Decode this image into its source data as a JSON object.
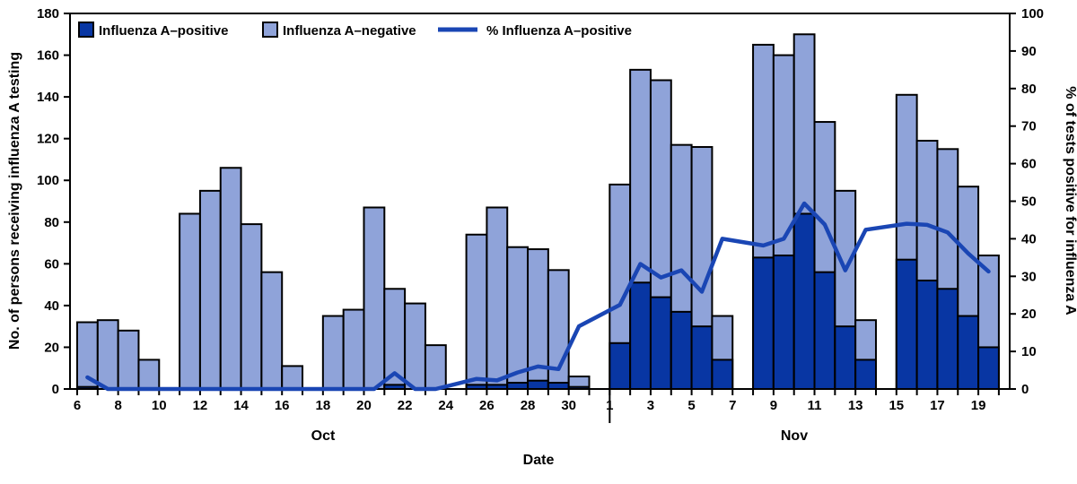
{
  "chart_data": {
    "type": "combo: stacked-bar + line (epidemic curve)",
    "title": "",
    "legend_position": "top-left inside plot",
    "grid": false,
    "colors": {
      "positive": "#0836a3",
      "negative": "#8fa3d9",
      "line": "#1a46b4",
      "axis": "#000000"
    },
    "legend": [
      "Influenza A–positive",
      "Influenza A–negative",
      "% Influenza A–positive"
    ],
    "left_axis": {
      "label": "No. of persons receiving influenza A testing",
      "min": 0,
      "max": 180,
      "step": 20
    },
    "right_axis": {
      "label": "% of tests positive for influenza A",
      "min": 0,
      "max": 100,
      "step": 10
    },
    "x_axis": {
      "label": "Date"
    },
    "months": [
      "Oct",
      "Nov"
    ],
    "x_tick_labels": {
      "Oct": [
        6,
        8,
        10,
        12,
        14,
        16,
        18,
        20,
        22,
        24,
        26,
        28,
        30
      ],
      "Nov": [
        1,
        3,
        5,
        7,
        9,
        11,
        13,
        15,
        17,
        19
      ]
    },
    "days": [
      {
        "month": "Oct",
        "day": 6,
        "positive": 1,
        "negative": 31,
        "percent_positive": 3.1
      },
      {
        "month": "Oct",
        "day": 7,
        "positive": 0,
        "negative": 33,
        "percent_positive": 0
      },
      {
        "month": "Oct",
        "day": 8,
        "positive": 0,
        "negative": 28,
        "percent_positive": 0
      },
      {
        "month": "Oct",
        "day": 9,
        "positive": 0,
        "negative": 14,
        "percent_positive": 0
      },
      {
        "month": "Oct",
        "day": 10,
        "positive": null,
        "negative": null,
        "percent_positive": null
      },
      {
        "month": "Oct",
        "day": 11,
        "positive": 0,
        "negative": 84,
        "percent_positive": 0
      },
      {
        "month": "Oct",
        "day": 12,
        "positive": 0,
        "negative": 95,
        "percent_positive": 0
      },
      {
        "month": "Oct",
        "day": 13,
        "positive": 0,
        "negative": 106,
        "percent_positive": 0
      },
      {
        "month": "Oct",
        "day": 14,
        "positive": 0,
        "negative": 79,
        "percent_positive": 0
      },
      {
        "month": "Oct",
        "day": 15,
        "positive": 0,
        "negative": 56,
        "percent_positive": 0
      },
      {
        "month": "Oct",
        "day": 16,
        "positive": 0,
        "negative": 11,
        "percent_positive": 0
      },
      {
        "month": "Oct",
        "day": 17,
        "positive": null,
        "negative": null,
        "percent_positive": null
      },
      {
        "month": "Oct",
        "day": 18,
        "positive": 0,
        "negative": 35,
        "percent_positive": 0
      },
      {
        "month": "Oct",
        "day": 19,
        "positive": 0,
        "negative": 38,
        "percent_positive": 0
      },
      {
        "month": "Oct",
        "day": 20,
        "positive": 0,
        "negative": 87,
        "percent_positive": 0
      },
      {
        "month": "Oct",
        "day": 21,
        "positive": 2,
        "negative": 46,
        "percent_positive": 4.2
      },
      {
        "month": "Oct",
        "day": 22,
        "positive": 0,
        "negative": 41,
        "percent_positive": 0
      },
      {
        "month": "Oct",
        "day": 23,
        "positive": 0,
        "negative": 21,
        "percent_positive": 0
      },
      {
        "month": "Oct",
        "day": 24,
        "positive": null,
        "negative": null,
        "percent_positive": null
      },
      {
        "month": "Oct",
        "day": 25,
        "positive": 2,
        "negative": 72,
        "percent_positive": 2.7
      },
      {
        "month": "Oct",
        "day": 26,
        "positive": 2,
        "negative": 85,
        "percent_positive": 2.3
      },
      {
        "month": "Oct",
        "day": 27,
        "positive": 3,
        "negative": 65,
        "percent_positive": 4.4
      },
      {
        "month": "Oct",
        "day": 28,
        "positive": 4,
        "negative": 63,
        "percent_positive": 6.0
      },
      {
        "month": "Oct",
        "day": 29,
        "positive": 3,
        "negative": 54,
        "percent_positive": 5.3
      },
      {
        "month": "Oct",
        "day": 30,
        "positive": 1,
        "negative": 5,
        "percent_positive": 16.7
      },
      {
        "month": "Oct",
        "day": 31,
        "positive": null,
        "negative": null,
        "percent_positive": null
      },
      {
        "month": "Nov",
        "day": 1,
        "positive": 22,
        "negative": 76,
        "percent_positive": 22.4
      },
      {
        "month": "Nov",
        "day": 2,
        "positive": 51,
        "negative": 102,
        "percent_positive": 33.3
      },
      {
        "month": "Nov",
        "day": 3,
        "positive": 44,
        "negative": 104,
        "percent_positive": 29.7
      },
      {
        "month": "Nov",
        "day": 4,
        "positive": 37,
        "negative": 80,
        "percent_positive": 31.6
      },
      {
        "month": "Nov",
        "day": 5,
        "positive": 30,
        "negative": 86,
        "percent_positive": 25.9
      },
      {
        "month": "Nov",
        "day": 6,
        "positive": 14,
        "negative": 21,
        "percent_positive": 40.0
      },
      {
        "month": "Nov",
        "day": 7,
        "positive": null,
        "negative": null,
        "percent_positive": null
      },
      {
        "month": "Nov",
        "day": 8,
        "positive": 63,
        "negative": 102,
        "percent_positive": 38.2
      },
      {
        "month": "Nov",
        "day": 9,
        "positive": 64,
        "negative": 96,
        "percent_positive": 40.0
      },
      {
        "month": "Nov",
        "day": 10,
        "positive": 84,
        "negative": 86,
        "percent_positive": 49.4
      },
      {
        "month": "Nov",
        "day": 11,
        "positive": 56,
        "negative": 72,
        "percent_positive": 43.8
      },
      {
        "month": "Nov",
        "day": 12,
        "positive": 30,
        "negative": 65,
        "percent_positive": 31.6
      },
      {
        "month": "Nov",
        "day": 13,
        "positive": 14,
        "negative": 19,
        "percent_positive": 42.4
      },
      {
        "month": "Nov",
        "day": 14,
        "positive": null,
        "negative": null,
        "percent_positive": null
      },
      {
        "month": "Nov",
        "day": 15,
        "positive": 62,
        "negative": 79,
        "percent_positive": 44.0
      },
      {
        "month": "Nov",
        "day": 16,
        "positive": 52,
        "negative": 67,
        "percent_positive": 43.7
      },
      {
        "month": "Nov",
        "day": 17,
        "positive": 48,
        "negative": 67,
        "percent_positive": 41.7
      },
      {
        "month": "Nov",
        "day": 18,
        "positive": 35,
        "negative": 62,
        "percent_positive": 36.1
      },
      {
        "month": "Nov",
        "day": 19,
        "positive": 20,
        "negative": 44,
        "percent_positive": 31.3
      }
    ]
  }
}
